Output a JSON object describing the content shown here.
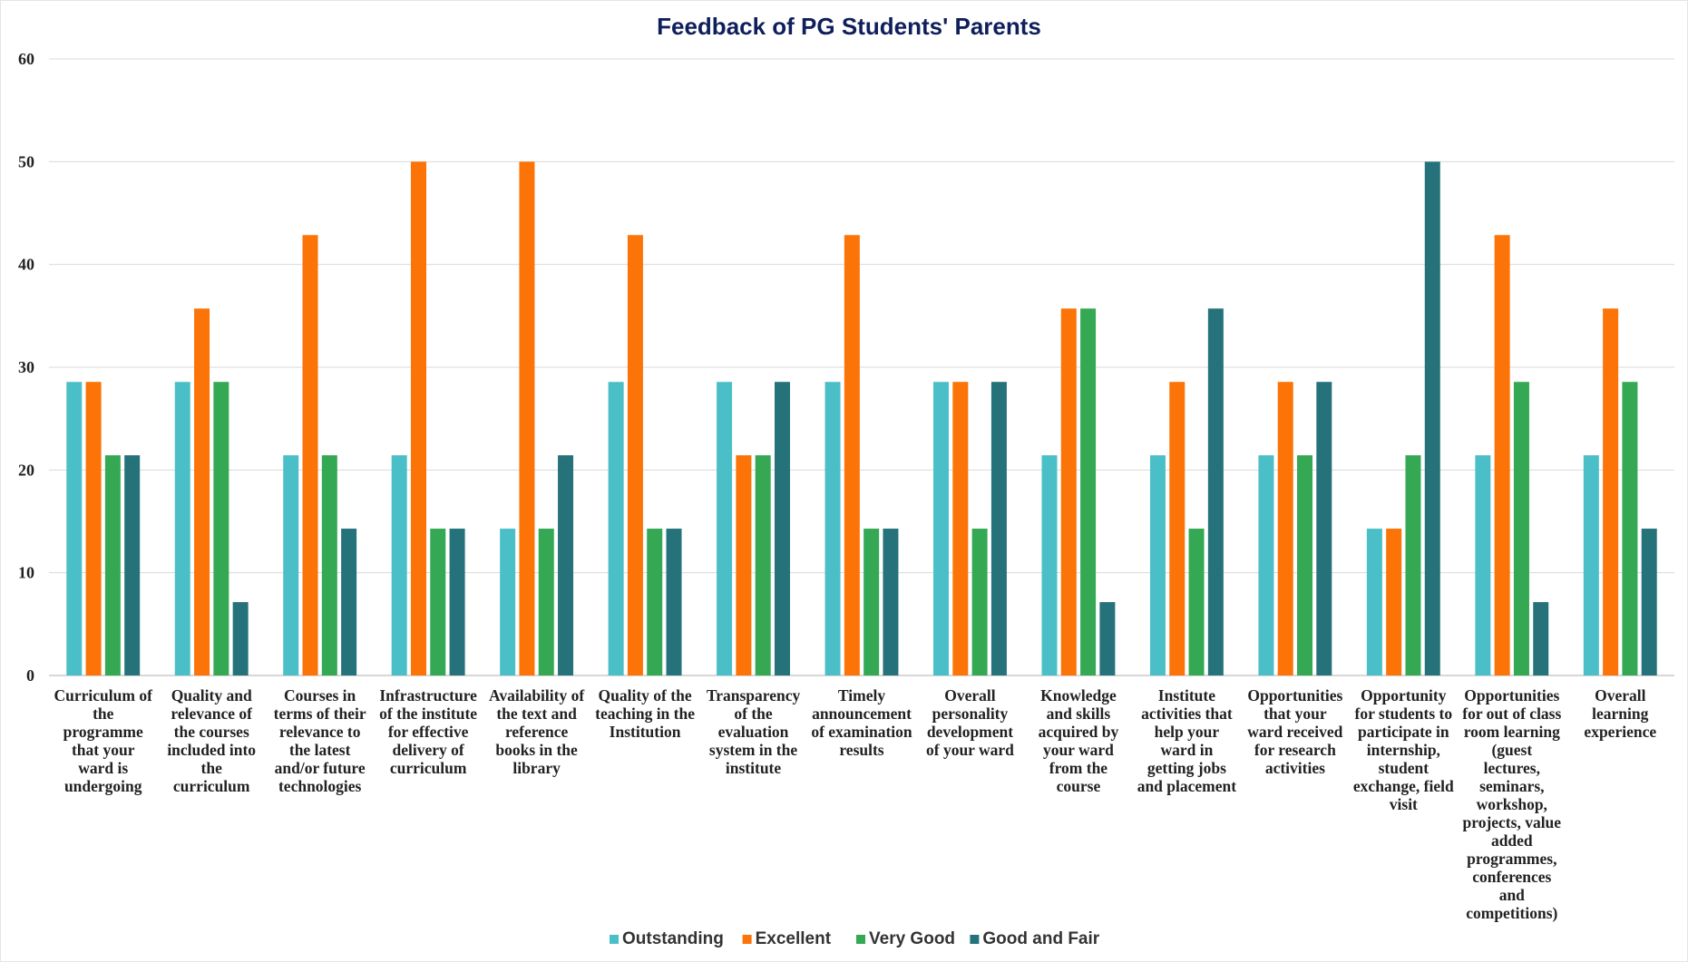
{
  "chart_data": {
    "type": "bar",
    "title": "Feedback of PG Students' Parents",
    "xlabel": "",
    "ylabel": "",
    "ylim": [
      0,
      60
    ],
    "yticks": [
      0,
      10,
      20,
      30,
      40,
      50,
      60
    ],
    "grid": true,
    "legend_position": "bottom",
    "categories": [
      "Curriculum of the programme that your ward is undergoing",
      "Quality and relevance of the courses included into the curriculum",
      "Courses in terms of their relevance to the latest and/or future technologies",
      "Infrastructure of the institute for effective delivery of curriculum",
      "Availability of the text and reference books in the library",
      "Quality of the teaching in the Institution",
      "Transparency of the evaluation system in the institute",
      "Timely announcement of examination results",
      "Overall personality development of your ward",
      "Knowledge and skills acquired by your ward from the course",
      "Institute activities that help your ward in getting jobs and placement",
      "Opportunities that your ward received for research activities",
      "Opportunity for students to participate in internship, student exchange, field visit",
      "Opportunities for out of class room learning (guest lectures, seminars, workshop, projects, value added programmes, conferences and competitions)",
      "Overall learning experience"
    ],
    "category_lines": [
      [
        "Curriculum of",
        "the",
        "programme",
        "that your",
        "ward is",
        "undergoing"
      ],
      [
        "Quality and",
        "relevance of",
        "the courses",
        "included into",
        "the",
        "curriculum"
      ],
      [
        "Courses in",
        "terms of their",
        "relevance to",
        "the latest",
        "and/or future",
        "technologies"
      ],
      [
        "Infrastructure",
        "of the institute",
        "for effective",
        "delivery of",
        "curriculum"
      ],
      [
        "Availability of",
        "the text and",
        "reference",
        "books in the",
        "library"
      ],
      [
        "Quality of the",
        "teaching in the",
        "Institution"
      ],
      [
        "Transparency",
        "of the",
        "evaluation",
        "system in the",
        "institute"
      ],
      [
        "Timely",
        "announcement",
        "of examination",
        "results"
      ],
      [
        "Overall",
        "personality",
        "development",
        "of your ward"
      ],
      [
        "Knowledge",
        "and skills",
        "acquired by",
        "your ward",
        "from the",
        "course"
      ],
      [
        "Institute",
        "activities that",
        "help your",
        "ward in",
        "getting jobs",
        "and placement"
      ],
      [
        "Opportunities",
        "that your",
        "ward received",
        "for research",
        "activities"
      ],
      [
        "Opportunity",
        "for students to",
        "participate in",
        "internship,",
        "student",
        "exchange, field",
        "visit"
      ],
      [
        "Opportunities",
        "for out of class",
        "room learning",
        "(guest",
        "lectures,",
        "seminars,",
        "workshop,",
        "projects, value",
        "added",
        "programmes,",
        "conferences",
        "and",
        "competitions)"
      ],
      [
        "Overall",
        "learning",
        "experience"
      ]
    ],
    "series": [
      {
        "name": "Outstanding",
        "color": "#4bbfc8",
        "values": [
          28.57,
          28.57,
          21.43,
          21.43,
          14.29,
          28.57,
          28.57,
          28.57,
          28.57,
          21.43,
          21.43,
          21.43,
          14.29,
          21.43,
          21.43
        ]
      },
      {
        "name": "Excellent",
        "color": "#fc7307",
        "values": [
          28.57,
          35.71,
          42.86,
          50.0,
          50.0,
          42.86,
          21.43,
          42.86,
          28.57,
          35.71,
          28.57,
          28.57,
          14.29,
          42.86,
          35.71
        ]
      },
      {
        "name": "Very Good",
        "color": "#35a854",
        "values": [
          21.43,
          28.57,
          21.43,
          14.29,
          14.29,
          14.29,
          21.43,
          14.29,
          14.29,
          35.71,
          14.29,
          21.43,
          21.43,
          28.57,
          28.57
        ]
      },
      {
        "name": "Good and Fair",
        "color": "#25727b",
        "values": [
          21.43,
          7.14,
          14.29,
          14.29,
          21.43,
          14.29,
          28.57,
          14.29,
          28.57,
          7.14,
          35.71,
          28.57,
          50.0,
          7.14,
          14.29
        ]
      }
    ]
  }
}
